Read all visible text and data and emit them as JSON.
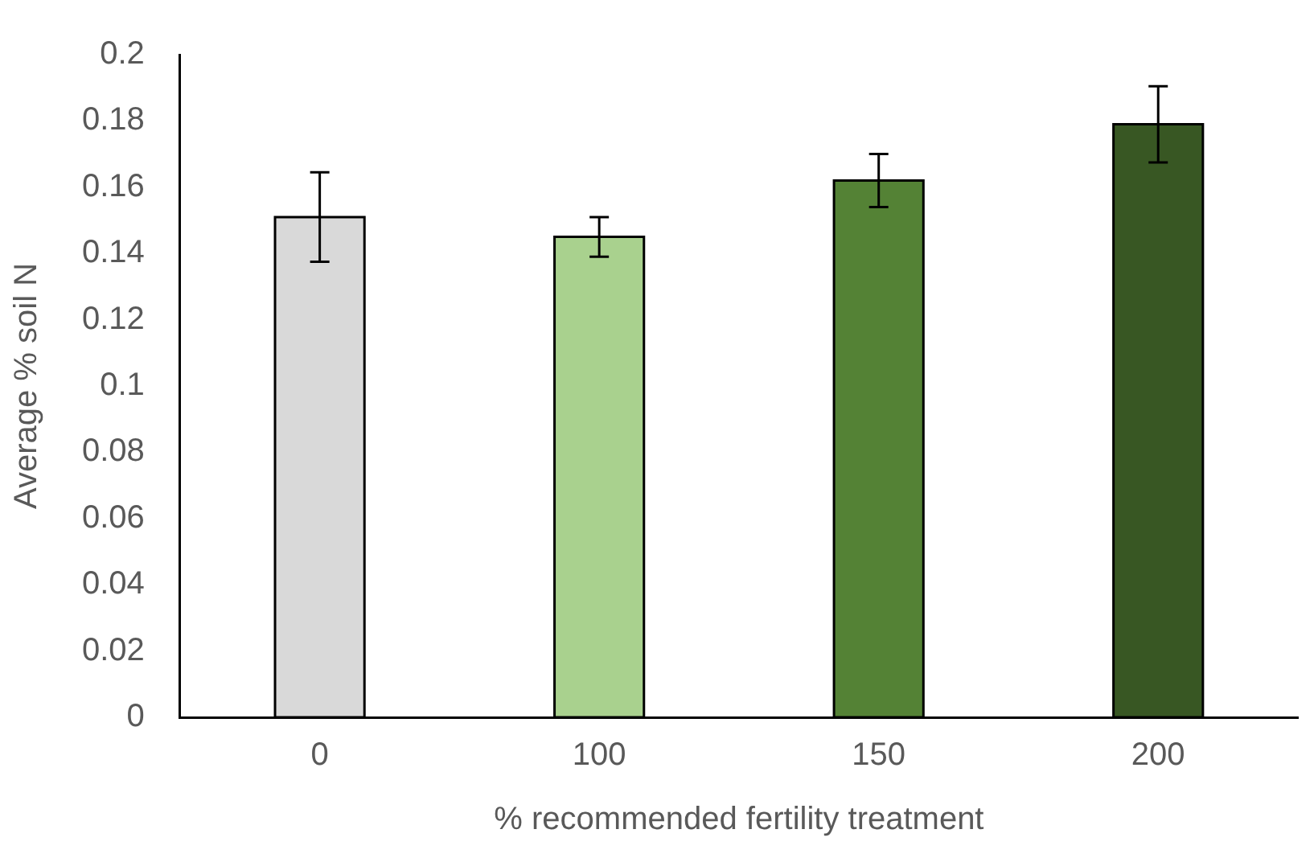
{
  "chart_data": {
    "type": "bar",
    "xlabel": "% recommended fertility treatment",
    "ylabel": "Average % soil N",
    "categories": [
      "0",
      "100",
      "150",
      "200"
    ],
    "values": [
      0.151,
      0.145,
      0.162,
      0.179
    ],
    "colors": [
      "#d9d9d9",
      "#a9d18e",
      "#548235",
      "#385723"
    ],
    "errors": [
      0.0135,
      0.006,
      0.008,
      0.0115
    ],
    "ylim": [
      0,
      0.2
    ],
    "yticks": [
      0,
      0.02,
      0.04,
      0.06,
      0.08,
      0.1,
      0.12,
      0.14,
      0.16,
      0.18,
      0.2
    ],
    "grid": false,
    "legend": false
  }
}
